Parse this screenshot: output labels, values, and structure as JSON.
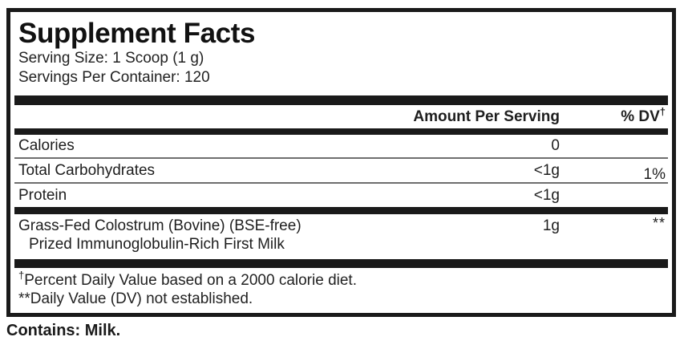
{
  "title": "Supplement Facts",
  "serving": {
    "size_line": "Serving Size: 1 Scoop (1 g)",
    "per_container_line": "Servings Per Container: 120"
  },
  "header": {
    "amount_label": "Amount Per Serving",
    "dv_label": "% DV",
    "dv_symbol": "†"
  },
  "rows": [
    {
      "name": "Calories",
      "amount": "0",
      "dv": ""
    },
    {
      "name": "Total Carbohydrates",
      "amount": "<1g",
      "dv": "1%"
    },
    {
      "name": "Protein",
      "amount": "<1g",
      "dv": ""
    },
    {
      "name": "Grass-Fed Colostrum (Bovine) (BSE-free)",
      "subname": "Prized Immunoglobulin-Rich First Milk",
      "amount": "1g",
      "dv": "**"
    }
  ],
  "footnotes": [
    {
      "symbol": "†",
      "text": "Percent Daily Value based on a 2000 calorie diet."
    },
    {
      "symbol": "**",
      "text": "Daily Value (DV) not established."
    }
  ],
  "contains": "Contains: Milk.",
  "colors": {
    "background": "#ffffff",
    "text": "#1e1e1e",
    "border": "#1a1a1a",
    "thick_bar": "#1a1a1a",
    "thin_separator": "#6e6e6e"
  }
}
